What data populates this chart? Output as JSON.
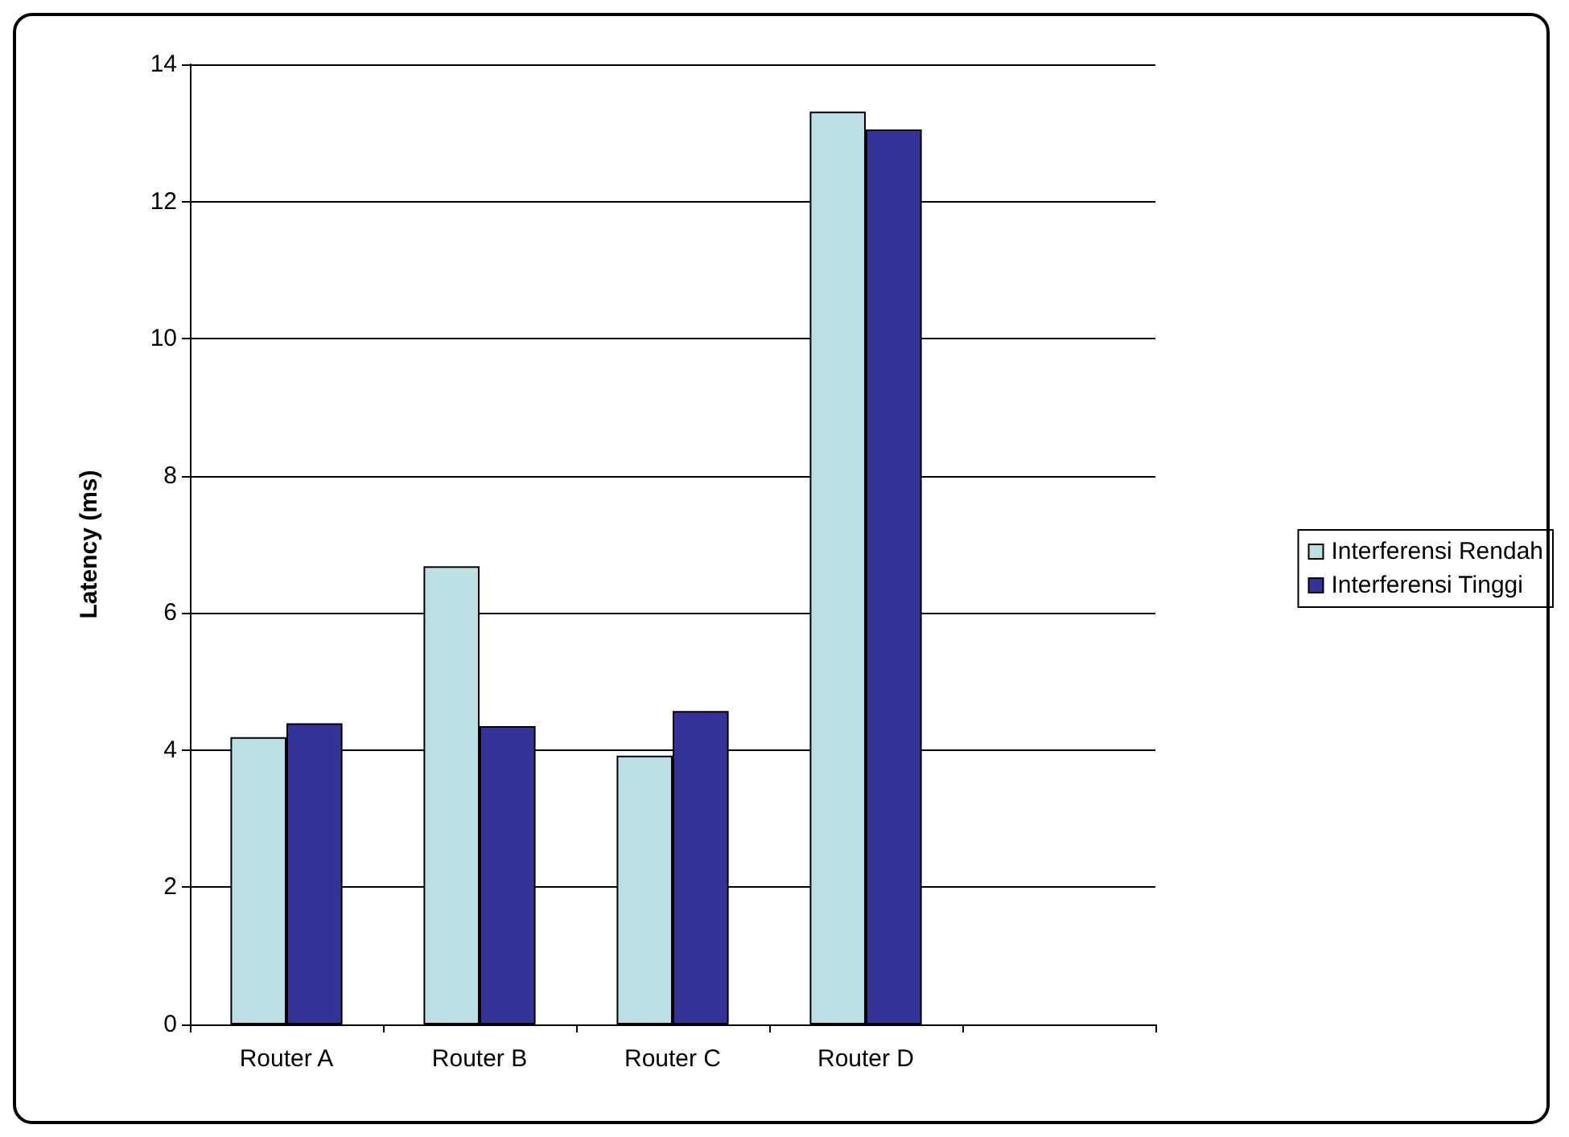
{
  "chart_data": {
    "type": "bar",
    "ylabel": "Latency (ms)",
    "categories": [
      "Router A",
      "Router B",
      "Router C",
      "Router D",
      null
    ],
    "series": [
      {
        "name": "Interferensi Rendah",
        "color": "#bbe0e3",
        "values": [
          4.19,
          6.68,
          3.92,
          13.31,
          null
        ]
      },
      {
        "name": "Interferensi Tinggi",
        "color": "#333399",
        "values": [
          4.39,
          4.35,
          4.57,
          13.05,
          null
        ]
      }
    ],
    "ylim": [
      0,
      14
    ],
    "yticks": [
      0,
      2,
      4,
      6,
      8,
      10,
      12,
      14
    ],
    "grid": "y",
    "legend": "right"
  }
}
